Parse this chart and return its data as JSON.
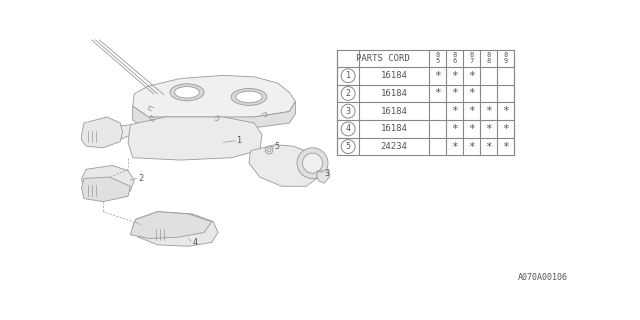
{
  "fig_width": 6.4,
  "fig_height": 3.2,
  "dpi": 100,
  "bg_color": "#ffffff",
  "table": {
    "header_col": "PARTS CORD",
    "year_cols": [
      "85",
      "86",
      "87",
      "88",
      "89"
    ],
    "rows": [
      {
        "num": "1",
        "part": "16184",
        "marks": [
          true,
          true,
          true,
          false,
          false
        ]
      },
      {
        "num": "2",
        "part": "16184",
        "marks": [
          true,
          true,
          true,
          false,
          false
        ]
      },
      {
        "num": "3",
        "part": "16184",
        "marks": [
          false,
          true,
          true,
          true,
          true
        ]
      },
      {
        "num": "4",
        "part": "16184",
        "marks": [
          false,
          true,
          true,
          true,
          true
        ]
      },
      {
        "num": "5",
        "part": "24234",
        "marks": [
          false,
          true,
          true,
          true,
          true
        ]
      }
    ]
  },
  "label_code": "A070A00106",
  "line_color": "#888888",
  "text_color": "#555555",
  "draw_color": "#999999",
  "font_size": 7.0
}
